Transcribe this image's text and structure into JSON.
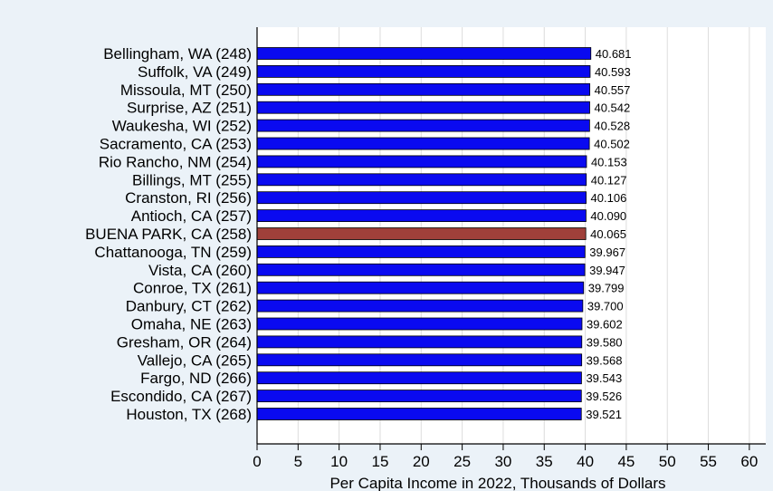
{
  "chart_data": {
    "type": "bar",
    "orientation": "horizontal",
    "title": "",
    "xlabel": "Per Capita Income in 2022, Thousands of Dollars",
    "ylabel": "",
    "xlim": [
      0,
      62
    ],
    "xticks": [
      0,
      5,
      10,
      15,
      20,
      25,
      30,
      35,
      40,
      45,
      50,
      55,
      60
    ],
    "grid": true,
    "legend": "none",
    "categories": [
      "Bellingham, WA (248)",
      "Suffolk, VA (249)",
      "Missoula, MT (250)",
      "Surprise, AZ (251)",
      "Waukesha, WI (252)",
      "Sacramento, CA (253)",
      "Rio Rancho, NM (254)",
      "Billings, MT (255)",
      "Cranston, RI (256)",
      "Antioch, CA (257)",
      "BUENA PARK, CA (258)",
      "Chattanooga, TN (259)",
      "Vista, CA (260)",
      "Conroe, TX (261)",
      "Danbury, CT (262)",
      "Omaha, NE (263)",
      "Gresham, OR (264)",
      "Vallejo, CA (265)",
      "Fargo, ND (266)",
      "Escondido, CA (267)",
      "Houston, TX (268)"
    ],
    "values": [
      40.681,
      40.593,
      40.557,
      40.542,
      40.528,
      40.502,
      40.153,
      40.127,
      40.106,
      40.09,
      40.065,
      39.967,
      39.947,
      39.799,
      39.7,
      39.602,
      39.58,
      39.568,
      39.543,
      39.526,
      39.521
    ],
    "value_labels": [
      "40.681",
      "40.593",
      "40.557",
      "40.542",
      "40.528",
      "40.502",
      "40.153",
      "40.127",
      "40.106",
      "40.090",
      "40.065",
      "39.967",
      "39.947",
      "39.799",
      "39.700",
      "39.602",
      "39.580",
      "39.568",
      "39.543",
      "39.526",
      "39.521"
    ],
    "highlight_index": 10,
    "colors": {
      "bar": "#0a0af0",
      "highlight": "#a0403a",
      "background": "#ebf2f8",
      "plot_background": "#ffffff",
      "grid": "#dcdcdc"
    }
  }
}
